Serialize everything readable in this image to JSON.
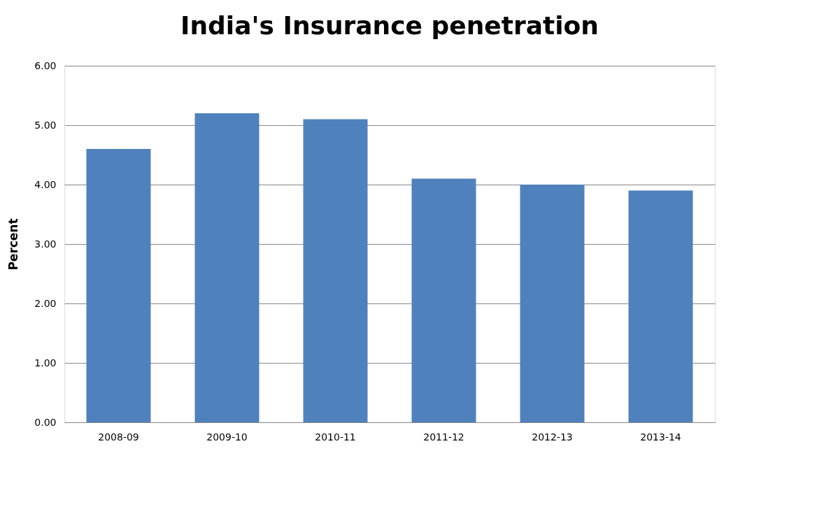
{
  "chart_data": {
    "type": "bar",
    "title": "India's Insurance penetration",
    "ylabel": "Percent",
    "categories": [
      "2008-09",
      "2009-10",
      "2010-11",
      "2011-12",
      "2012-13",
      "2013-14"
    ],
    "values": [
      4.6,
      5.2,
      5.1,
      4.1,
      4.0,
      3.9
    ],
    "color": "#4f81bd",
    "ylim": [
      0,
      6
    ],
    "yticks": [
      {
        "value": 0,
        "label": "0.00"
      },
      {
        "value": 1,
        "label": "1.00"
      },
      {
        "value": 2,
        "label": "2.00"
      },
      {
        "value": 3,
        "label": "3.00"
      },
      {
        "value": 4,
        "label": "4.00"
      },
      {
        "value": 5,
        "label": "5.00"
      },
      {
        "value": 6,
        "label": "6.00"
      }
    ],
    "grid": "y"
  }
}
